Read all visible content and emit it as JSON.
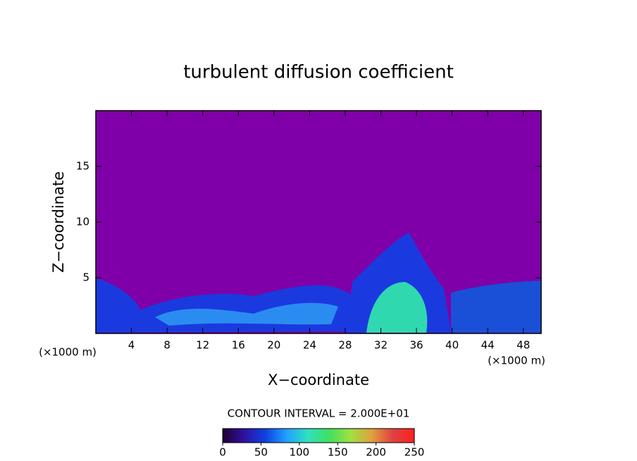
{
  "chart_data": {
    "type": "contour",
    "title": "turbulent diffusion coefficient",
    "xlabel": "X−coordinate",
    "ylabel": "Z−coordinate",
    "x_unit": "(×1000 m)",
    "y_unit": "(×1000 m)",
    "xlim": [
      0,
      50
    ],
    "xticks": [
      4,
      8,
      12,
      16,
      20,
      24,
      28,
      32,
      36,
      40,
      44,
      48
    ],
    "ylim": [
      0,
      20
    ],
    "yticks": [
      5,
      10,
      15
    ],
    "background_color": "#7f00a8",
    "annotation": "CONTOUR INTERVAL = 2.000E+01",
    "colorbar": {
      "lim": [
        0,
        250
      ],
      "ticks": [
        0,
        50,
        100,
        150,
        200,
        250
      ],
      "colors": [
        "#200030",
        "#3010a0",
        "#1040e0",
        "#20a0ff",
        "#30e0c0",
        "#40e060",
        "#a0e040",
        "#e0a040",
        "#e04040",
        "#ff2020"
      ]
    }
  }
}
